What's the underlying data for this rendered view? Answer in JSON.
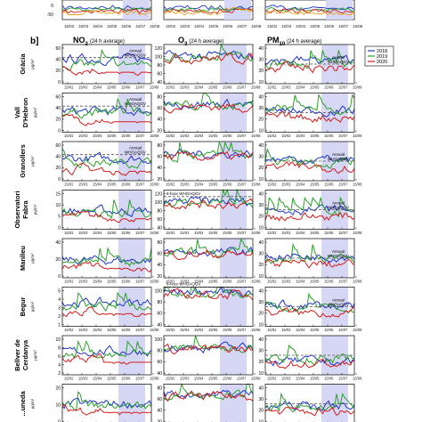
{
  "figure": {
    "panel_label": "b]",
    "headers": [
      "NO",
      "O",
      "PM"
    ],
    "header_subs": [
      "2",
      "3",
      "10"
    ],
    "header_suffix": "(24 h average)",
    "legend": [
      "2018",
      "2019",
      "2020"
    ],
    "colors": {
      "2018": "#1f35c9",
      "2019": "#2aa12a",
      "2020": "#d41c1c",
      "shade": "#d6d6f5",
      "guide": "#555555"
    },
    "x_ticks": [
      "15/02",
      "15/03",
      "15/04",
      "15/05",
      "15/06",
      "15/07",
      "15/08"
    ],
    "units": "µg/m³",
    "annot_annual": [
      "Annual",
      "WHOAQGV"
    ],
    "annot_8h": "8-hour WHOAQGV",
    "rows": [
      "Gràcia",
      "Vall D'Hebron",
      "Granollers",
      "Observatori Fabra",
      "Manlleu",
      "Begur",
      "Bellver de Cerdanya",
      "...uneda"
    ]
  },
  "chart_data": [
    {
      "type": "line",
      "title": "NO2 (24 h average)",
      "xlabel": "",
      "ylabel": "µg/m³",
      "x": [
        "15/02",
        "15/03",
        "15/04",
        "15/05",
        "15/06",
        "15/07",
        "15/08"
      ],
      "ylim": [
        0,
        60
      ],
      "rows": [
        "Gràcia",
        "Vall D'Hebron",
        "Granollers",
        "Observatori Fabra",
        "Manlleu",
        "Begur",
        "Bellver de Cerdanya"
      ],
      "series": [
        {
          "name": "2018"
        },
        {
          "name": "2019"
        },
        {
          "name": "2020"
        }
      ]
    },
    {
      "type": "line",
      "title": "O3 (24 h average)",
      "xlabel": "",
      "ylabel": "µg/m³",
      "x": [
        "15/02",
        "15/03",
        "15/04",
        "15/05",
        "15/06",
        "15/07",
        "15/08"
      ],
      "ylim": [
        0,
        120
      ],
      "rows": [
        "Gràcia",
        "Vall D'Hebron",
        "Granollers",
        "Observatori Fabra",
        "Manlleu",
        "Begur",
        "Bellver de Cerdanya"
      ],
      "series": [
        {
          "name": "2018"
        },
        {
          "name": "2019"
        },
        {
          "name": "2020"
        }
      ]
    },
    {
      "type": "line",
      "title": "PM10 (24 h average)",
      "xlabel": "",
      "ylabel": "µg/m³",
      "x": [
        "15/02",
        "15/03",
        "15/04",
        "15/05",
        "15/06",
        "15/07",
        "15/08"
      ],
      "ylim": [
        0,
        40
      ],
      "rows": [
        "Gràcia",
        "Vall D'Hebron",
        "Granollers",
        "Observatori Fabra",
        "Manlleu",
        "Begur",
        "Bellver de Cerdanya"
      ],
      "series": [
        {
          "name": "2018"
        },
        {
          "name": "2019"
        },
        {
          "name": "2020"
        }
      ]
    }
  ],
  "panels": [
    [
      {
        "yticks": [
          "60",
          "40",
          "20",
          "0"
        ],
        "ymax": 60,
        "guide": 40,
        "annual": true,
        "b": 38,
        "g": 30,
        "r": 22
      },
      {
        "yticks": [
          "60",
          "40",
          "20",
          "0"
        ],
        "ymax": 60,
        "guide": 40,
        "annual": true,
        "b": 32,
        "g": 30,
        "r": 20
      },
      {
        "yticks": [
          "60",
          "40",
          "20",
          "0"
        ],
        "ymax": 60,
        "guide": 40,
        "annual": true,
        "b": 34,
        "g": 28,
        "r": 18
      },
      {
        "yticks": [
          "15",
          "10",
          "5",
          "0"
        ],
        "ymax": 15,
        "guide": null,
        "annual": false,
        "b": 7,
        "g": 6,
        "r": 5
      },
      {
        "yticks": [
          "40",
          "20",
          "0"
        ],
        "ymax": 40,
        "guide": null,
        "annual": false,
        "b": 18,
        "g": 16,
        "r": 12
      },
      {
        "yticks": [
          "5",
          "4",
          "3",
          "2",
          "1"
        ],
        "ymax": 5,
        "guide": null,
        "annual": false,
        "b": 3,
        "g": 2.5,
        "r": 2
      },
      {
        "yticks": [
          "10",
          "8",
          "6",
          "4",
          "2"
        ],
        "ymax": 10,
        "guide": null,
        "annual": false,
        "b": 6,
        "g": 5,
        "r": 4
      },
      {
        "yticks": [
          "20",
          "10",
          "0"
        ],
        "ymax": 20,
        "guide": null,
        "annual": false,
        "b": 10,
        "g": 9,
        "r": 7
      }
    ],
    [
      {
        "yticks": [
          "120",
          "100",
          "80",
          "60",
          "40"
        ],
        "ymax": 120,
        "guide": null,
        "annual": false,
        "b": 85,
        "g": 80,
        "r": 78
      },
      {
        "yticks": [
          "80",
          "60",
          "40",
          "20"
        ],
        "ymax": 80,
        "guide": null,
        "annual": false,
        "b": 58,
        "g": 55,
        "r": 52
      },
      {
        "yticks": [
          "80",
          "60",
          "40",
          "20"
        ],
        "ymax": 80,
        "guide": null,
        "annual": false,
        "b": 55,
        "g": 50,
        "r": 48
      },
      {
        "yticks": [
          "120",
          "100",
          "80",
          "60",
          "40"
        ],
        "ymax": 120,
        "guide": 100,
        "annual": false,
        "eight": true,
        "b": 85,
        "g": 82,
        "r": 78
      },
      {
        "yticks": [
          "80",
          "60",
          "40",
          "20"
        ],
        "ymax": 80,
        "guide": null,
        "annual": false,
        "b": 52,
        "g": 50,
        "r": 48
      },
      {
        "yticks": [
          "100",
          "80",
          "60",
          "40"
        ],
        "ymax": 100,
        "guide": 100,
        "annual": false,
        "eight": true,
        "b": 88,
        "g": 82,
        "r": 80
      },
      {
        "yticks": [
          "100",
          "80",
          "60",
          "40"
        ],
        "ymax": 100,
        "guide": null,
        "annual": false,
        "b": 70,
        "g": 68,
        "r": 65
      },
      {
        "yticks": [
          "80",
          "60",
          "40",
          "20"
        ],
        "ymax": 80,
        "guide": null,
        "annual": false,
        "b": 60,
        "g": 58,
        "r": 55
      }
    ],
    [
      {
        "yticks": [
          "40",
          "30",
          "20",
          "10"
        ],
        "ymax": 40,
        "guide": 20,
        "annual": true,
        "b": 24,
        "g": 20,
        "r": 16
      },
      {
        "yticks": [
          "40",
          "30",
          "20",
          "10"
        ],
        "ymax": 40,
        "guide": 20,
        "annual": false,
        "b": 22,
        "g": 24,
        "r": 15
      },
      {
        "yticks": [
          "40",
          "30",
          "20",
          "10"
        ],
        "ymax": 40,
        "guide": 20,
        "annual": true,
        "b": 22,
        "g": 18,
        "r": 14
      },
      {
        "yticks": [
          "40",
          "30",
          "20",
          "10"
        ],
        "ymax": 40,
        "guide": 20,
        "annual": true,
        "b": 20,
        "g": 18,
        "r": 13
      },
      {
        "yticks": [
          "40",
          "30",
          "20",
          "10"
        ],
        "ymax": 40,
        "guide": 20,
        "annual": true,
        "b": 22,
        "g": 20,
        "r": 14
      },
      {
        "yticks": [
          "40",
          "30",
          "20",
          "10"
        ],
        "ymax": 40,
        "guide": 20,
        "annual": true,
        "b": 21,
        "g": 19,
        "r": 14
      },
      {
        "yticks": [
          "40",
          "30",
          "20",
          "10"
        ],
        "ymax": 40,
        "guide": 20,
        "annual": false,
        "b": 14,
        "g": 16,
        "r": 11
      },
      {
        "yticks": [
          "40",
          "30",
          "20",
          "10"
        ],
        "ymax": 40,
        "guide": 20,
        "annual": false,
        "b": 18,
        "g": 16,
        "r": 12
      }
    ]
  ]
}
